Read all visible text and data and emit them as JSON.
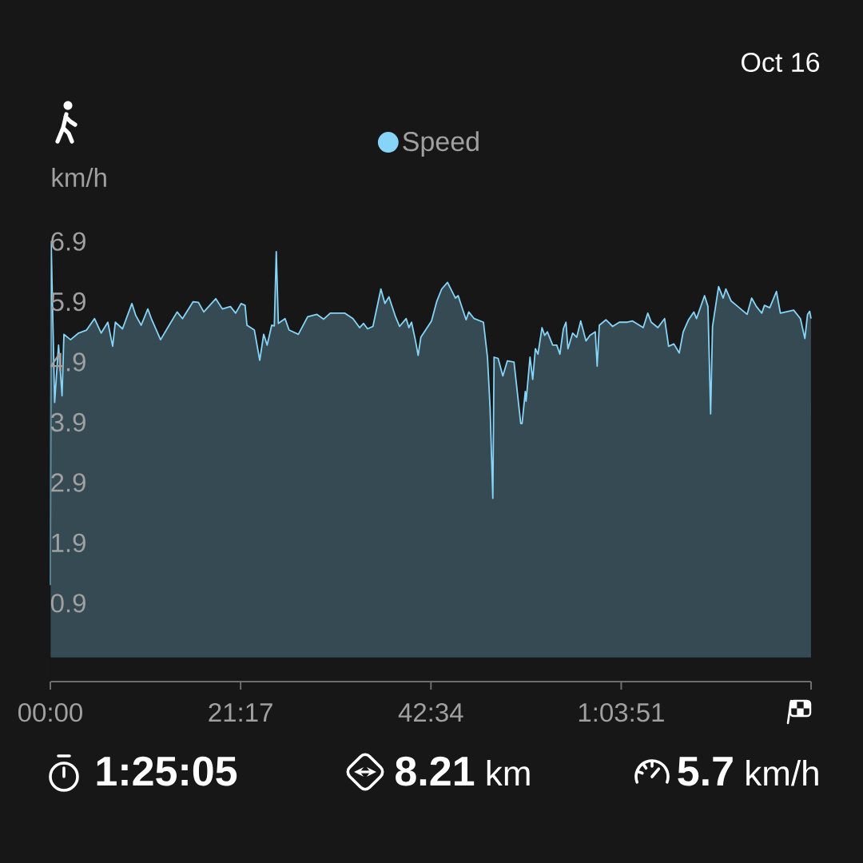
{
  "chart_data": {
    "type": "area",
    "ylabel": "km/h",
    "annotations": [
      "Oct 16",
      "1:25:05",
      "**8.21** km",
      "**5.7** km/h"
    ],
    "x": [
      0,
      0.09,
      0.48,
      0.92,
      1.31,
      1.52,
      2.26,
      3.16,
      4.05,
      4.94,
      5.69,
      6.43,
      6.97,
      7.27,
      8.07,
      9.12,
      9.56,
      10.16,
      10.9,
      11.35,
      12.33,
      13.29,
      14.18,
      14.78,
      15.97,
      16.56,
      17.16,
      18.5,
      19.24,
      20.14,
      20.73,
      21.33,
      21.78,
      21.99,
      22.82,
      23.42,
      23.86,
      24.25,
      24.76,
      25.05,
      25.27,
      25.5,
      26.25,
      26.7,
      27.74,
      28.78,
      29.82,
      30.57,
      31.31,
      32.95,
      33.85,
      34.59,
      35.03,
      35.48,
      36.08,
      36.97,
      37.42,
      37.87,
      38.61,
      39.06,
      39.8,
      40.1,
      40.4,
      40.84,
      41.14,
      41.44,
      42.63,
      43.23,
      43.77,
      44.42,
      45.31,
      45.61,
      46.5,
      46.8,
      47.4,
      48.44,
      48.89,
      49.18,
      49.49,
      49.63,
      50.08,
      50.61,
      51.12,
      51.86,
      52.61,
      52.76,
      53.12,
      53.21,
      53.65,
      53.95,
      54.25,
      54.54,
      54.99,
      55.29,
      55.59,
      56.19,
      56.64,
      56.99,
      57.38,
      57.67,
      57.89,
      58.42,
      58.87,
      59.32,
      59.91,
      60.35,
      60.95,
      61.16,
      61.4,
      62.14,
      62.89,
      63.63,
      64.53,
      65.12,
      66.31,
      66.82,
      67.21,
      67.95,
      68.7,
      69.15,
      69.74,
      70.34,
      70.78,
      71.38,
      71.97,
      72.27,
      73.17,
      73.55,
      73.85,
      74.06,
      74.74,
      75.25,
      75.55,
      76.15,
      76.89,
      77.93,
      78.44,
      78.97,
      79.57,
      79.87,
      80.46,
      81.21,
      81.65,
      82.25,
      83.14,
      83.89,
      84.39,
      84.69,
      84.93,
      85.08
    ],
    "series": [
      {
        "name": "Speed",
        "color": "#86d4f7",
        "values": [
          1.2,
          6.9,
          4.23,
          5.18,
          4.34,
          5.36,
          5.27,
          5.38,
          5.43,
          5.62,
          5.38,
          5.56,
          5.16,
          5.56,
          5.45,
          5.87,
          5.67,
          5.51,
          5.78,
          5.6,
          5.27,
          5.51,
          5.73,
          5.62,
          5.9,
          5.89,
          5.73,
          5.95,
          5.78,
          5.82,
          5.71,
          5.87,
          5.84,
          5.51,
          5.43,
          4.93,
          5.36,
          5.18,
          5.51,
          5.5,
          6.73,
          5.54,
          5.62,
          5.43,
          5.36,
          5.65,
          5.69,
          5.61,
          5.71,
          5.71,
          5.62,
          5.47,
          5.54,
          5.45,
          5.49,
          6.11,
          5.87,
          5.98,
          5.65,
          5.49,
          5.62,
          5.47,
          5.56,
          5.25,
          5.01,
          5.31,
          5.58,
          5.91,
          6.11,
          6.22,
          5.96,
          6.0,
          5.6,
          5.73,
          5.62,
          5.56,
          4.98,
          4.15,
          2.64,
          4.98,
          4.96,
          4.67,
          4.92,
          4.9,
          3.88,
          3.88,
          4.41,
          4.25,
          4.98,
          4.61,
          5.12,
          5.03,
          5.47,
          5.34,
          5.4,
          5.18,
          5.18,
          5.03,
          5.45,
          5.56,
          5.12,
          5.38,
          5.31,
          5.58,
          5.25,
          5.34,
          5.4,
          4.83,
          5.51,
          5.6,
          5.49,
          5.56,
          5.56,
          5.58,
          5.47,
          5.71,
          5.56,
          5.47,
          5.62,
          5.16,
          5.2,
          5.05,
          5.4,
          5.6,
          5.73,
          5.62,
          6.0,
          5.82,
          4.04,
          5.49,
          6.15,
          5.96,
          6.11,
          5.91,
          5.82,
          5.69,
          5.96,
          5.82,
          5.71,
          5.84,
          5.8,
          6.07,
          5.71,
          5.73,
          5.76,
          5.62,
          5.29,
          5.69,
          5.74,
          5.62
        ]
      }
    ],
    "xlim": [
      0,
      85.083
    ],
    "xticks": [
      {
        "value": 0,
        "label": "00:00"
      },
      {
        "value": 21.283,
        "label": "21:17"
      },
      {
        "value": 42.567,
        "label": "42:34"
      },
      {
        "value": 63.85,
        "label": "1:03:51"
      },
      {
        "value": 85.083,
        "label": null
      }
    ],
    "ylim": [
      -0.4,
      7.1
    ],
    "yticks": [
      0.9,
      1.9,
      2.9,
      3.9,
      4.9,
      5.9,
      6.9
    ],
    "legend": "top"
  }
}
